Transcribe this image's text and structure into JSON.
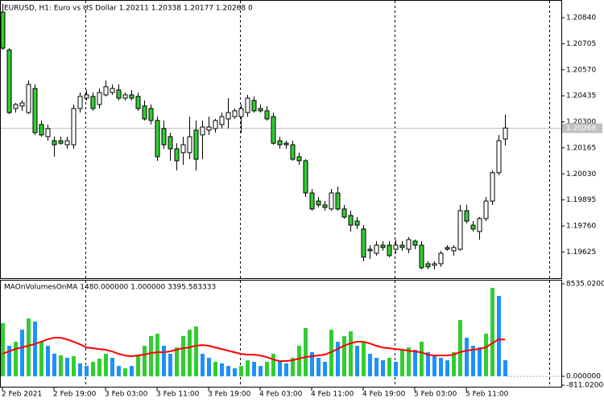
{
  "chart_data": [
    {
      "type": "candlestick",
      "title": "EURUSD, H1:  Euro vs US Dollar  1.20211 1.20338 1.20177 1.20268  0",
      "open": [
        1.20869,
        1.20673,
        1.20369,
        1.20382,
        1.20348,
        1.20473,
        1.20286,
        1.20223,
        1.20202,
        1.20202,
        1.20181,
        1.20181,
        1.20369,
        1.20423,
        1.20432,
        1.2039,
        1.2044,
        1.20452,
        1.20465,
        1.20423,
        1.2044,
        1.20432,
        1.20382,
        1.20369,
        1.20307,
        1.20265,
        1.20223,
        1.2016,
        1.2014,
        1.2014,
        1.20257,
        1.20232,
        1.20257,
        1.20265,
        1.20286,
        1.20315,
        1.20327,
        1.20327,
        1.20348,
        1.20411,
        1.20369,
        1.20357,
        1.20327,
        1.20202,
        1.20189,
        1.20181,
        1.20119,
        1.20098,
        1.19931,
        1.19889,
        1.19869,
        1.19848,
        1.19931,
        1.19848,
        1.19814,
        1.19785,
        1.19744,
        1.19639,
        1.19618,
        1.1966,
        1.1966,
        1.19639,
        1.1966,
        1.19639,
        1.19681,
        1.1966,
        1.19564,
        1.19556,
        1.19564,
        1.19648,
        1.19631,
        1.19639,
        1.19839,
        1.19764,
        1.19731,
        1.19798,
        1.19889,
        1.20036,
        1.20211
      ],
      "high": [
        1.20911,
        1.20682,
        1.20398,
        1.20411,
        1.20515,
        1.20494,
        1.20307,
        1.20286,
        1.20223,
        1.20223,
        1.20223,
        1.2039,
        1.20452,
        1.20465,
        1.20452,
        1.20473,
        1.20515,
        1.20494,
        1.20494,
        1.20452,
        1.20465,
        1.20452,
        1.20411,
        1.2039,
        1.20327,
        1.20307,
        1.20244,
        1.20189,
        1.20223,
        1.20327,
        1.20307,
        1.20307,
        1.20327,
        1.20315,
        1.20348,
        1.20423,
        1.20369,
        1.2039,
        1.2044,
        1.20432,
        1.2039,
        1.20382,
        1.20348,
        1.20223,
        1.20202,
        1.20202,
        1.2014,
        1.20106,
        1.19952,
        1.1991,
        1.19889,
        1.19952,
        1.19965,
        1.19869,
        1.19839,
        1.19806,
        1.19764,
        1.1966,
        1.19681,
        1.19681,
        1.19681,
        1.19689,
        1.19681,
        1.19702,
        1.19689,
        1.19681,
        1.19577,
        1.19577,
        1.19631,
        1.1966,
        1.1966,
        1.19869,
        1.19869,
        1.19785,
        1.19806,
        1.1991,
        1.20048,
        1.20232,
        1.20338
      ],
      "low": [
        1.20673,
        1.2034,
        1.20348,
        1.20357,
        1.2034,
        1.20232,
        1.20223,
        1.20202,
        1.20119,
        1.20181,
        1.2016,
        1.2016,
        1.20348,
        1.20411,
        1.20357,
        1.20369,
        1.20432,
        1.2044,
        1.20411,
        1.20411,
        1.20411,
        1.20357,
        1.20307,
        1.20286,
        1.20098,
        1.2016,
        1.20098,
        1.20048,
        1.20077,
        1.20106,
        1.20048,
        1.20106,
        1.20232,
        1.20244,
        1.20265,
        1.20265,
        1.20315,
        1.20244,
        1.20327,
        1.20348,
        1.20348,
        1.20307,
        1.20181,
        1.2016,
        1.2016,
        1.20098,
        1.20077,
        1.1991,
        1.19839,
        1.19856,
        1.19839,
        1.19839,
        1.19839,
        1.19798,
        1.19731,
        1.19744,
        1.19577,
        1.19589,
        1.19606,
        1.19631,
        1.19598,
        1.19618,
        1.19631,
        1.19618,
        1.19639,
        1.19535,
        1.19535,
        1.19535,
        1.19548,
        1.19631,
        1.19606,
        1.19631,
        1.19773,
        1.19731,
        1.19689,
        1.19785,
        1.19869,
        1.20023,
        1.20177
      ],
      "close": [
        1.20682,
        1.20348,
        1.2039,
        1.20398,
        1.20494,
        1.20244,
        1.20232,
        1.20265,
        1.20181,
        1.20189,
        1.20202,
        1.20369,
        1.20432,
        1.2044,
        1.20369,
        1.20452,
        1.20482,
        1.20473,
        1.20423,
        1.2044,
        1.20423,
        1.20369,
        1.20315,
        1.20307,
        1.20119,
        1.20181,
        1.2016,
        1.20098,
        1.20181,
        1.20223,
        1.20106,
        1.20273,
        1.20273,
        1.20307,
        1.20327,
        1.20348,
        1.20357,
        1.20369,
        1.20423,
        1.20357,
        1.20357,
        1.20315,
        1.20189,
        1.20181,
        1.20181,
        1.20106,
        1.20098,
        1.19931,
        1.19848,
        1.19869,
        1.19856,
        1.19931,
        1.19848,
        1.19806,
        1.19764,
        1.19764,
        1.19598,
        1.19631,
        1.1966,
        1.19648,
        1.19606,
        1.1966,
        1.19648,
        1.19689,
        1.1966,
        1.19543,
        1.19548,
        1.19564,
        1.19618,
        1.19639,
        1.19648,
        1.19839,
        1.19785,
        1.19744,
        1.19798,
        1.19889,
        1.20036,
        1.20202,
        1.20268
      ],
      "up_color": "#ffffff",
      "down_color": "#32cd32",
      "xlim": [
        -0.375,
        86.75
      ],
      "ylim": [
        1.19493,
        1.20932
      ],
      "yticks": [
        {
          "value": 1.2084,
          "label": "1.20840"
        },
        {
          "value": 1.20705,
          "label": "1.20705"
        },
        {
          "value": 1.2057,
          "label": "1.20570"
        },
        {
          "value": 1.20435,
          "label": "1.20435"
        },
        {
          "value": 1.203,
          "label": "1.20300"
        },
        {
          "value": 1.20165,
          "label": "1.20165"
        },
        {
          "value": 1.2003,
          "label": "1.20030"
        },
        {
          "value": 1.19895,
          "label": "1.19895"
        },
        {
          "value": 1.1976,
          "label": "1.19760"
        },
        {
          "value": 1.19625,
          "label": "1.19625"
        }
      ],
      "xticks": [
        {
          "value": 0,
          "label": "2 Feb 2021"
        },
        {
          "value": 8,
          "label": "2 Feb 19:00"
        },
        {
          "value": 16,
          "label": "3 Feb 03:00"
        },
        {
          "value": 24,
          "label": "3 Feb 11:00"
        },
        {
          "value": 32,
          "label": "3 Feb 19:00"
        },
        {
          "value": 40,
          "label": "4 Feb 03:00"
        },
        {
          "value": 48,
          "label": "4 Feb 11:00"
        },
        {
          "value": 56,
          "label": "4 Feb 19:00"
        },
        {
          "value": 64,
          "label": "5 Feb 03:00"
        },
        {
          "value": 72,
          "label": "5 Feb 11:00"
        }
      ],
      "current_price": {
        "value": 1.20268,
        "label": "1.20268"
      },
      "period_separators": [
        13,
        37,
        61,
        85
      ]
    },
    {
      "type": "bar",
      "title": "MAOnVolumesOnMA 1480.000000 1.000000 3395.583333",
      "values": [
        4900,
        2820,
        3190,
        4300,
        5340,
        5050,
        3190,
        2820,
        2080,
        1930,
        1710,
        1860,
        1190,
        960,
        1340,
        1630,
        2080,
        1710,
        960,
        740,
        960,
        1930,
        2820,
        3710,
        3930,
        2820,
        2080,
        2670,
        3710,
        4300,
        4600,
        2080,
        1710,
        1340,
        1190,
        960,
        740,
        960,
        1480,
        1340,
        960,
        1340,
        2080,
        1340,
        1190,
        1710,
        2820,
        4450,
        2230,
        1710,
        1340,
        4300,
        3190,
        3710,
        4150,
        2820,
        3190,
        2080,
        1710,
        1480,
        1710,
        1340,
        2450,
        2670,
        2450,
        3190,
        2230,
        1930,
        1710,
        1480,
        2230,
        5190,
        3560,
        2820,
        2670,
        3930,
        8160,
        7420,
        1480
      ],
      "color_index": [
        0,
        1,
        0,
        1,
        0,
        1,
        0,
        1,
        1,
        0,
        1,
        0,
        1,
        1,
        0,
        0,
        0,
        1,
        1,
        0,
        1,
        0,
        0,
        0,
        0,
        1,
        1,
        0,
        0,
        0,
        0,
        1,
        1,
        0,
        1,
        1,
        1,
        0,
        0,
        1,
        1,
        0,
        0,
        1,
        1,
        0,
        0,
        0,
        1,
        1,
        1,
        0,
        1,
        0,
        0,
        1,
        0,
        1,
        1,
        1,
        0,
        1,
        0,
        0,
        1,
        0,
        1,
        1,
        1,
        1,
        0,
        0,
        1,
        1,
        1,
        0,
        0,
        1,
        1
      ],
      "palette": [
        "#32cd32",
        "#1e90ff"
      ],
      "ma_values": [
        2078,
        2300,
        2523,
        2671,
        2820,
        2968,
        3191,
        3413,
        3562,
        3562,
        3413,
        3191,
        2968,
        2671,
        2597,
        2523,
        2449,
        2300,
        2078,
        1929,
        1855,
        1929,
        2003,
        2152,
        2226,
        2226,
        2300,
        2449,
        2597,
        2671,
        2820,
        2894,
        2820,
        2671,
        2523,
        2374,
        2226,
        2078,
        2003,
        2003,
        1929,
        1781,
        1558,
        1410,
        1410,
        1484,
        1632,
        1781,
        1855,
        1929,
        2003,
        2226,
        2523,
        2820,
        3042,
        3191,
        3191,
        3042,
        2820,
        2671,
        2597,
        2523,
        2449,
        2374,
        2300,
        2226,
        2003,
        1929,
        1929,
        1929,
        2003,
        2226,
        2374,
        2449,
        2523,
        2671,
        3042,
        3413,
        3395.583333
      ],
      "ma_color": "#ff0000",
      "ylim": [
        -811.02,
        8535.02
      ],
      "yticks": [
        {
          "value": 8535.02,
          "label": "8535.02000"
        },
        {
          "value": 0,
          "label": "0.000000"
        },
        {
          "value": -811.02,
          "label": "-811.02000"
        }
      ]
    }
  ]
}
